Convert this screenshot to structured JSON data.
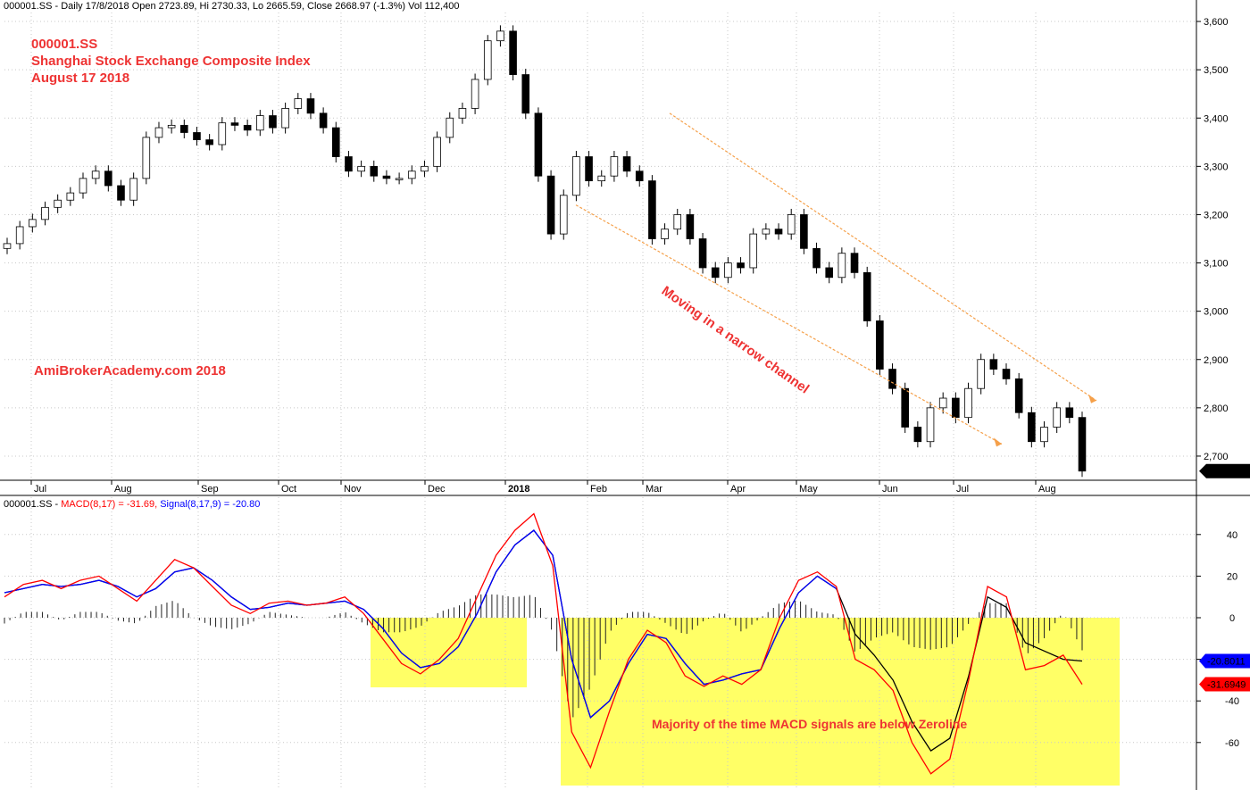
{
  "header": {
    "price_info": "000001.SS - Daily 17/8/2018 Open 2723.89, Hi 2730.33, Lo 2665.59, Close 2668.97 (-1.3%) Vol 112,400",
    "macd_prefix": "000001.SS - ",
    "macd_label": "MACD(8,17) = -31.69,",
    "signal_label": "Signal(8,17,9) = -20.80"
  },
  "annotations": {
    "ticker": "000001.SS",
    "index_name": "Shanghai Stock Exchange Composite Index",
    "date": "August 17 2018",
    "site": "AmiBrokerAcademy.com  2018",
    "channel_note": "Moving in a narrow channel",
    "macd_note": "Majority of the time MACD signals are below Zeroline"
  },
  "colors": {
    "macd": "#ff0000",
    "signal": "#0000ff",
    "annotation": "#ee3333",
    "highlight": "#ffff66",
    "channel": "#f5a04a"
  },
  "chart_data": [
    {
      "type": "candlestick",
      "title": "000001.SS Shanghai Stock Exchange Composite Index",
      "x_tick_labels": [
        "Jul",
        "Aug",
        "Sep",
        "Oct",
        "Nov",
        "Dec",
        "2018",
        "Feb",
        "Mar",
        "Apr",
        "May",
        "Jun",
        "Jul",
        "Aug"
      ],
      "y_tick_labels": [
        "3,600",
        "3,500",
        "3,400",
        "3,300",
        "3,200",
        "3,100",
        "3,000",
        "2,900",
        "2,800",
        "2,700"
      ],
      "ylim": [
        2650,
        3620
      ],
      "last_close_label": "2,668.97",
      "close_series": [
        3140,
        3175,
        3190,
        3215,
        3230,
        3245,
        3275,
        3290,
        3260,
        3230,
        3275,
        3360,
        3380,
        3385,
        3370,
        3355,
        3345,
        3390,
        3385,
        3375,
        3405,
        3380,
        3420,
        3440,
        3410,
        3380,
        3320,
        3290,
        3300,
        3280,
        3275,
        3275,
        3290,
        3300,
        3360,
        3400,
        3420,
        3480,
        3560,
        3580,
        3490,
        3410,
        3280,
        3160,
        3240,
        3320,
        3270,
        3280,
        3320,
        3290,
        3270,
        3150,
        3170,
        3200,
        3150,
        3090,
        3070,
        3100,
        3090,
        3160,
        3170,
        3160,
        3200,
        3130,
        3090,
        3070,
        3120,
        3080,
        2980,
        2880,
        2840,
        2760,
        2730,
        2800,
        2820,
        2780,
        2840,
        2900,
        2880,
        2860,
        2790,
        2730,
        2760,
        2800,
        2780,
        2668.97
      ],
      "channel": {
        "upper": [
          [
            3305,
            3410
          ],
          [
            3630,
            2815
          ]
        ],
        "lower": [
          [
            3200,
            3220
          ],
          [
            3590,
            2725
          ]
        ]
      }
    },
    {
      "type": "line",
      "title": "MACD(8,17) Signal(8,17,9)",
      "y_tick_labels": [
        "40",
        "20",
        "0",
        "-20",
        "-40",
        "-60"
      ],
      "ylim": [
        -80,
        55
      ],
      "series": [
        {
          "name": "MACD(8,17)",
          "values": [
            10,
            16,
            18,
            14,
            18,
            20,
            14,
            8,
            18,
            28,
            24,
            15,
            6,
            2,
            7,
            8,
            6,
            7,
            10,
            2,
            -10,
            -22,
            -27,
            -20,
            -10,
            10,
            30,
            42,
            50,
            25,
            -55,
            -72,
            -45,
            -20,
            -6,
            -12,
            -28,
            -33,
            -28,
            -32,
            -25,
            0,
            18,
            22,
            15,
            -20,
            -25,
            -35,
            -60,
            -75,
            -68,
            -30,
            15,
            10,
            -25,
            -23,
            -18,
            -32
          ]
        },
        {
          "name": "Signal(8,17,9)",
          "values": [
            12,
            14,
            16,
            15,
            16,
            18,
            15,
            10,
            14,
            22,
            24,
            18,
            10,
            4,
            5,
            7,
            6,
            7,
            8,
            4,
            -5,
            -17,
            -24,
            -22,
            -14,
            2,
            22,
            35,
            42,
            30,
            -20,
            -48,
            -40,
            -22,
            -8,
            -10,
            -22,
            -32,
            -30,
            -27,
            -25,
            -5,
            12,
            20,
            14,
            -8,
            -18,
            -30,
            -50,
            -64,
            -58,
            -28,
            10,
            5,
            -12,
            -16,
            -20,
            -20.8
          ]
        }
      ],
      "right_labels": [
        "-20.8011",
        "-31.6949"
      ]
    }
  ]
}
